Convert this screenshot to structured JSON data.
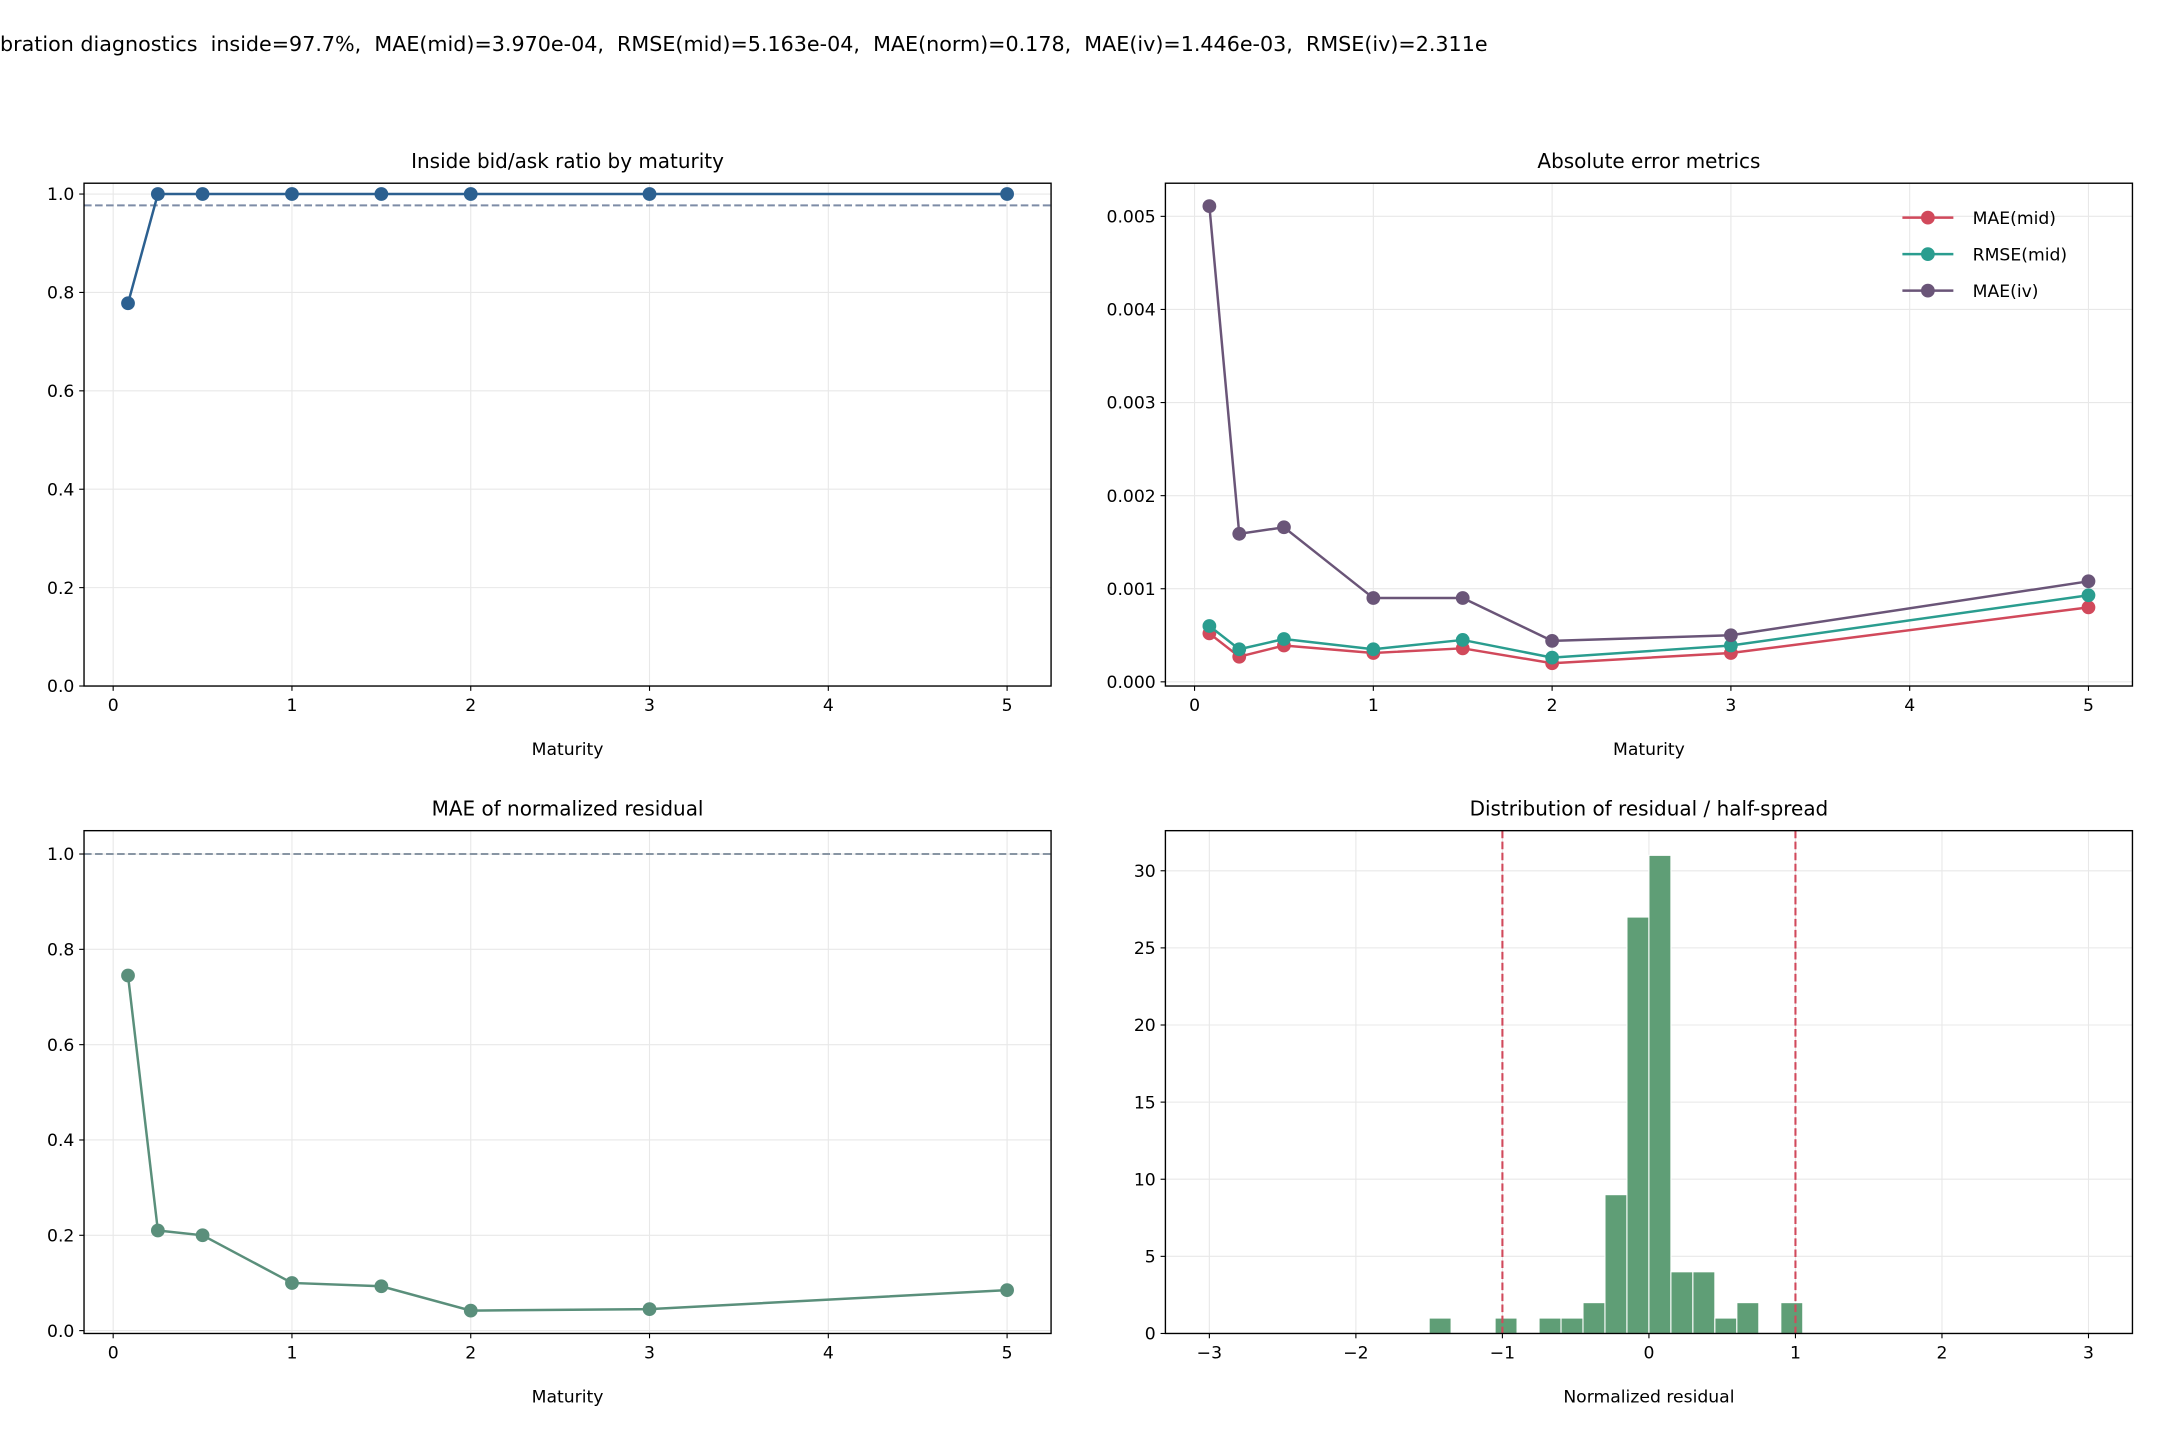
{
  "suptitle": "bration diagnostics  inside=97.7%,  MAE(mid)=3.970e-04,  RMSE(mid)=5.163e-04,  MAE(norm)=0.178,  MAE(iv)=1.446e-03,  RMSE(iv)=2.311e",
  "chart_data": [
    {
      "type": "line",
      "title": "Inside bid/ask ratio by maturity",
      "xlabel": "Maturity",
      "ylabel": "",
      "xlim": [
        -0.163,
        5.246
      ],
      "ylim": [
        0,
        1.022
      ],
      "grid": true,
      "xticks": [
        0,
        1,
        2,
        3,
        4,
        5
      ],
      "xtick_labels": [
        "0",
        "1",
        "2",
        "3",
        "4",
        "5"
      ],
      "yticks": [
        0,
        0.2,
        0.4,
        0.6,
        0.8,
        1.0
      ],
      "ytick_labels": [
        "0.0",
        "0.2",
        "0.4",
        "0.6",
        "0.8",
        "1.0"
      ],
      "hlines": [
        {
          "y": 0.977,
          "color": "#7d8ca6",
          "style": "dashed"
        }
      ],
      "series": [
        {
          "color": "#2c6090",
          "x": [
            0.083,
            0.25,
            0.5,
            1,
            1.5,
            2,
            3,
            5
          ],
          "y": [
            0.778,
            1,
            1,
            1,
            1,
            1,
            1,
            1
          ]
        }
      ]
    },
    {
      "type": "line",
      "title": "Absolute error metrics",
      "xlabel": "Maturity",
      "ylabel": "",
      "xlim": [
        -0.163,
        5.246
      ],
      "ylim": [
        -4.5e-05,
        0.005356
      ],
      "grid": true,
      "legend": "top-right",
      "xticks": [
        0,
        1,
        2,
        3,
        4,
        5
      ],
      "xtick_labels": [
        "0",
        "1",
        "2",
        "3",
        "4",
        "5"
      ],
      "yticks": [
        0,
        0.001,
        0.002,
        0.003,
        0.004,
        0.005
      ],
      "ytick_labels": [
        "0.000",
        "0.001",
        "0.002",
        "0.003",
        "0.004",
        "0.005"
      ],
      "series": [
        {
          "name": "MAE(mid)",
          "color": "#d1495b",
          "x": [
            0.083,
            0.25,
            0.5,
            1,
            1.5,
            2,
            3,
            5
          ],
          "y": [
            0.00052,
            0.00027,
            0.00039,
            0.00031,
            0.00036,
            0.0002,
            0.00031,
            0.0008
          ]
        },
        {
          "name": "RMSE(mid)",
          "color": "#2a9d8f",
          "x": [
            0.083,
            0.25,
            0.5,
            1,
            1.5,
            2,
            3,
            5
          ],
          "y": [
            0.0006,
            0.00035,
            0.00046,
            0.00035,
            0.00045,
            0.00026,
            0.00039,
            0.00093
          ]
        },
        {
          "name": "MAE(iv)",
          "color": "#6a5578",
          "x": [
            0.083,
            0.25,
            0.5,
            1,
            1.5,
            2,
            3,
            5
          ],
          "y": [
            0.00511,
            0.00159,
            0.00166,
            0.0009,
            0.0009,
            0.00044,
            0.0005,
            0.00108
          ]
        }
      ]
    },
    {
      "type": "line",
      "title": "MAE of normalized residual",
      "xlabel": "Maturity",
      "ylabel": "",
      "xlim": [
        -0.163,
        5.246
      ],
      "ylim": [
        -0.006,
        1.049
      ],
      "grid": true,
      "xticks": [
        0,
        1,
        2,
        3,
        4,
        5
      ],
      "xtick_labels": [
        "0",
        "1",
        "2",
        "3",
        "4",
        "5"
      ],
      "yticks": [
        0,
        0.2,
        0.4,
        0.6,
        0.8,
        1.0
      ],
      "ytick_labels": [
        "0.0",
        "0.2",
        "0.4",
        "0.6",
        "0.8",
        "1.0"
      ],
      "hlines": [
        {
          "y": 1.0,
          "color": "#8895a3",
          "style": "dashed"
        }
      ],
      "series": [
        {
          "color": "#5a8f7b",
          "x": [
            0.083,
            0.25,
            0.5,
            1,
            1.5,
            2,
            3,
            5
          ],
          "y": [
            0.745,
            0.21,
            0.2,
            0.1,
            0.093,
            0.042,
            0.045,
            0.085
          ]
        }
      ]
    },
    {
      "type": "bar",
      "title": "Distribution of residual / half-spread",
      "xlabel": "Normalized residual",
      "ylabel": "",
      "xlim": [
        -3.3,
        3.3
      ],
      "ylim": [
        0,
        32.6
      ],
      "grid": true,
      "xticks": [
        -3,
        -2,
        -1,
        0,
        1,
        2,
        3
      ],
      "xtick_labels": [
        "−3",
        "−2",
        "−1",
        "0",
        "1",
        "2",
        "3"
      ],
      "yticks": [
        0,
        5,
        10,
        15,
        20,
        25,
        30
      ],
      "ytick_labels": [
        "0",
        "5",
        "10",
        "15",
        "20",
        "25",
        "30"
      ],
      "vlines": [
        {
          "x": -1,
          "color": "#d1495b",
          "style": "dashed"
        },
        {
          "x": 1,
          "color": "#d1495b",
          "style": "dashed"
        }
      ],
      "bar_color": "#5f9e76",
      "bins": [
        {
          "start": -1.5,
          "end": -1.35,
          "count": 1
        },
        {
          "start": -1.05,
          "end": -0.9,
          "count": 1
        },
        {
          "start": -0.75,
          "end": -0.6,
          "count": 1
        },
        {
          "start": -0.6,
          "end": -0.45,
          "count": 1
        },
        {
          "start": -0.45,
          "end": -0.3,
          "count": 2
        },
        {
          "start": -0.3,
          "end": -0.15,
          "count": 9
        },
        {
          "start": -0.15,
          "end": 0,
          "count": 27
        },
        {
          "start": 0,
          "end": 0.15,
          "count": 31
        },
        {
          "start": 0.15,
          "end": 0.3,
          "count": 4
        },
        {
          "start": 0.3,
          "end": 0.45,
          "count": 4
        },
        {
          "start": 0.45,
          "end": 0.6,
          "count": 1
        },
        {
          "start": 0.6,
          "end": 0.75,
          "count": 2
        },
        {
          "start": 0.9,
          "end": 1.05,
          "count": 2
        }
      ]
    }
  ]
}
